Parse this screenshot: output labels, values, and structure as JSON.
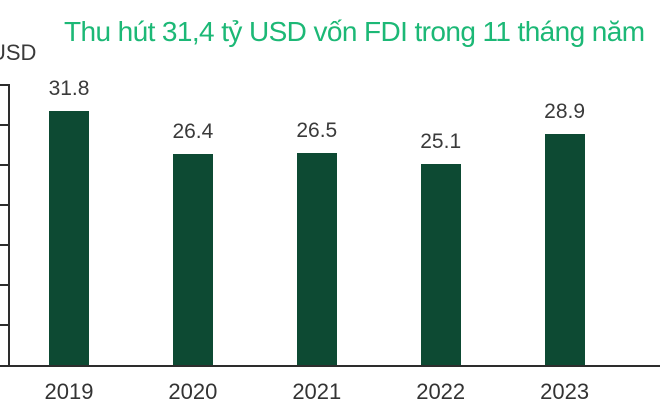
{
  "chart_data": {
    "type": "bar",
    "title": "Thu hút 31,4 tỷ USD vốn FDI trong 11 tháng năm",
    "title_color": "#1cb876",
    "unit_label": "USD",
    "categories": [
      "2019",
      "2020",
      "2021",
      "2022",
      "2023"
    ],
    "values": [
      31.8,
      26.4,
      26.5,
      25.1,
      28.9
    ],
    "value_labels": [
      "31.8",
      "26.4",
      "26.5",
      "25.1",
      "28.9"
    ],
    "xlabel": "",
    "ylabel": "USD",
    "ylim": [
      0,
      35
    ],
    "y_tick_step": 5,
    "y_tick_labels_visible": false,
    "grid": false,
    "legend_position": "none",
    "bar_color": "#0d4a33",
    "value_label_color": "#3a3a3a",
    "axis_color": "#2d2d2d",
    "background_color": "#ffffff"
  }
}
